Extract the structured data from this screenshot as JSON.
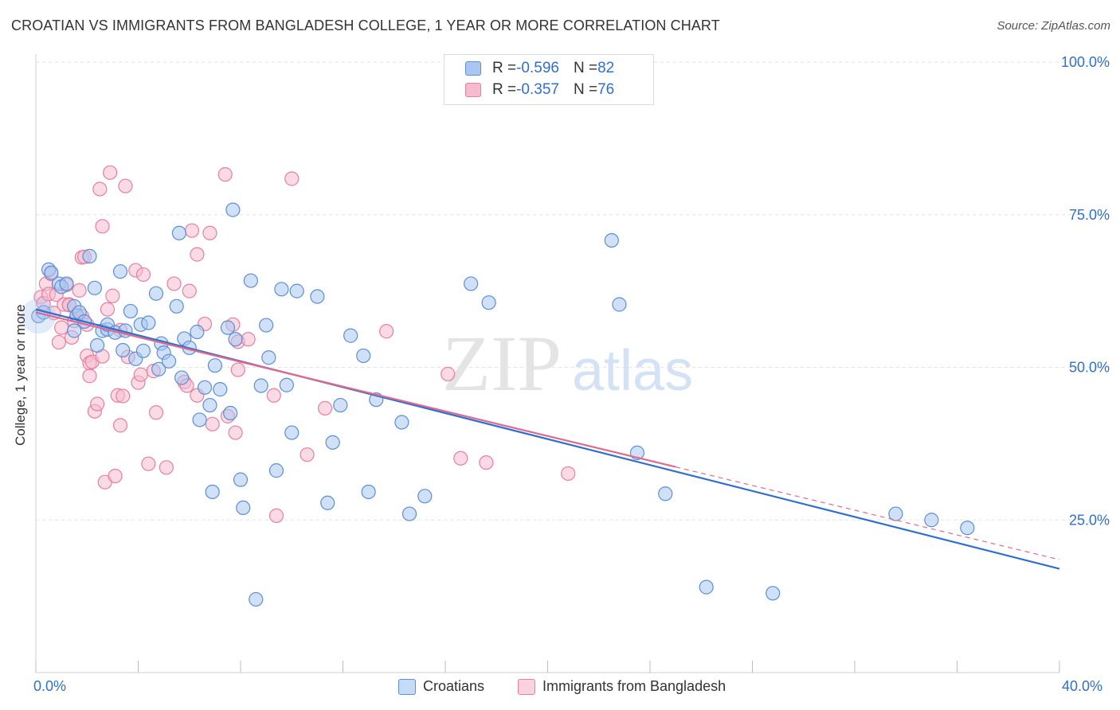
{
  "title": "CROATIAN VS IMMIGRANTS FROM BANGLADESH COLLEGE, 1 YEAR OR MORE CORRELATION CHART",
  "source": "Source: ZipAtlas.com",
  "watermark": {
    "zip": "ZIP",
    "atlas": "atlas"
  },
  "legend_top": [
    {
      "r_label": "R = ",
      "r_value": "-0.596",
      "n_label": "N = ",
      "n_value": "82"
    },
    {
      "r_label": "R = ",
      "r_value": "-0.357",
      "n_label": "N = ",
      "n_value": "76"
    }
  ],
  "colors": {
    "blue_fill": "#a9c7f0",
    "blue_stroke": "#5b8fd6",
    "blue_line": "#2f6fce",
    "pink_fill": "#f6bccd",
    "pink_stroke": "#e77fa0",
    "pink_line": "#e0688f",
    "axis_text": "#2f6fce",
    "grid": "#e3e3e3"
  },
  "chart_data": {
    "type": "scatter",
    "title": "CROATIAN VS IMMIGRANTS FROM BANGLADESH COLLEGE, 1 YEAR OR MORE CORRELATION CHART",
    "xlabel": "",
    "ylabel": "College, 1 year or more",
    "xlim": [
      0,
      40
    ],
    "ylim": [
      0,
      100
    ],
    "x_tick_labels": [
      "0.0%",
      "40.0%"
    ],
    "y_ticks": [
      25,
      50,
      75,
      100
    ],
    "y_tick_labels": [
      "25.0%",
      "50.0%",
      "75.0%",
      "100.0%"
    ],
    "grid": "horizontal dashed",
    "legend": "bottom-center",
    "series": [
      {
        "name": "Croatians",
        "r": -0.596,
        "n": 82,
        "trend": {
          "x0": 0,
          "y0": 59.5,
          "x1": 40,
          "y1": 17.0,
          "dashed_from": null
        },
        "points": [
          [
            0.1,
            58.4
          ],
          [
            0.5,
            66.0
          ],
          [
            0.6,
            65.5
          ],
          [
            0.9,
            63.7
          ],
          [
            1.0,
            63.2
          ],
          [
            1.2,
            63.7
          ],
          [
            1.5,
            60.0
          ],
          [
            1.5,
            56.0
          ],
          [
            1.6,
            58.5
          ],
          [
            1.7,
            59.0
          ],
          [
            2.1,
            68.2
          ],
          [
            2.3,
            63.0
          ],
          [
            2.4,
            53.6
          ],
          [
            2.6,
            56.0
          ],
          [
            2.8,
            56.2
          ],
          [
            2.8,
            57.0
          ],
          [
            3.1,
            55.7
          ],
          [
            3.3,
            65.7
          ],
          [
            3.4,
            52.8
          ],
          [
            3.5,
            56.0
          ],
          [
            3.7,
            59.2
          ],
          [
            3.9,
            51.4
          ],
          [
            4.1,
            57.0
          ],
          [
            4.2,
            52.7
          ],
          [
            4.4,
            57.3
          ],
          [
            4.7,
            62.1
          ],
          [
            4.8,
            49.7
          ],
          [
            4.9,
            53.9
          ],
          [
            5.0,
            52.4
          ],
          [
            5.2,
            51.0
          ],
          [
            5.5,
            60.0
          ],
          [
            5.6,
            72.0
          ],
          [
            5.7,
            48.3
          ],
          [
            5.8,
            54.7
          ],
          [
            6.0,
            53.2
          ],
          [
            6.3,
            55.8
          ],
          [
            6.4,
            41.4
          ],
          [
            6.6,
            46.7
          ],
          [
            6.8,
            43.8
          ],
          [
            7.0,
            50.3
          ],
          [
            7.2,
            46.4
          ],
          [
            7.5,
            56.5
          ],
          [
            7.6,
            42.5
          ],
          [
            7.8,
            54.6
          ],
          [
            7.7,
            75.8
          ],
          [
            8.0,
            31.6
          ],
          [
            8.1,
            27.0
          ],
          [
            8.4,
            64.2
          ],
          [
            8.8,
            47.0
          ],
          [
            9.0,
            56.9
          ],
          [
            9.1,
            51.6
          ],
          [
            9.4,
            33.1
          ],
          [
            9.6,
            62.8
          ],
          [
            9.8,
            47.1
          ],
          [
            10.0,
            39.3
          ],
          [
            10.2,
            62.5
          ],
          [
            11.0,
            61.6
          ],
          [
            11.4,
            27.8
          ],
          [
            11.6,
            37.7
          ],
          [
            11.9,
            43.8
          ],
          [
            12.3,
            55.2
          ],
          [
            12.8,
            51.9
          ],
          [
            13.0,
            29.6
          ],
          [
            13.3,
            44.7
          ],
          [
            14.3,
            41.0
          ],
          [
            14.6,
            26.0
          ],
          [
            15.2,
            28.9
          ],
          [
            17.0,
            63.7
          ],
          [
            17.7,
            60.6
          ],
          [
            22.5,
            70.8
          ],
          [
            22.8,
            60.3
          ],
          [
            23.5,
            36.0
          ],
          [
            24.6,
            29.3
          ],
          [
            26.2,
            14.0
          ],
          [
            28.8,
            13.0
          ],
          [
            33.6,
            26.0
          ],
          [
            35.0,
            25.0
          ],
          [
            36.4,
            23.7
          ],
          [
            8.6,
            12.0
          ],
          [
            6.9,
            29.6
          ],
          [
            1.9,
            57.5
          ],
          [
            0.3,
            59.0
          ]
        ]
      },
      {
        "name": "Immigrants from Bangladesh",
        "r": -0.357,
        "n": 76,
        "trend": {
          "x0": 0,
          "y0": 59.0,
          "x1": 40,
          "y1": 18.5,
          "dashed_from": 25
        },
        "points": [
          [
            0.2,
            61.5
          ],
          [
            0.3,
            60.5
          ],
          [
            0.4,
            63.7
          ],
          [
            0.5,
            62.0
          ],
          [
            0.6,
            65.3
          ],
          [
            0.7,
            58.9
          ],
          [
            0.8,
            61.9
          ],
          [
            0.9,
            54.1
          ],
          [
            1.0,
            56.5
          ],
          [
            1.1,
            60.3
          ],
          [
            1.2,
            63.5
          ],
          [
            1.3,
            60.3
          ],
          [
            1.4,
            54.9
          ],
          [
            1.5,
            57.6
          ],
          [
            1.6,
            58.5
          ],
          [
            1.7,
            62.6
          ],
          [
            1.8,
            58.4
          ],
          [
            1.8,
            68.0
          ],
          [
            1.9,
            68.1
          ],
          [
            2.0,
            57.0
          ],
          [
            2.0,
            51.9
          ],
          [
            2.1,
            50.7
          ],
          [
            2.1,
            48.6
          ],
          [
            2.2,
            50.9
          ],
          [
            2.3,
            42.8
          ],
          [
            2.4,
            44.0
          ],
          [
            2.5,
            79.2
          ],
          [
            2.6,
            51.8
          ],
          [
            2.6,
            73.1
          ],
          [
            2.7,
            31.2
          ],
          [
            2.8,
            59.5
          ],
          [
            2.9,
            81.9
          ],
          [
            3.0,
            61.7
          ],
          [
            3.1,
            32.2
          ],
          [
            3.2,
            45.4
          ],
          [
            3.3,
            40.5
          ],
          [
            3.4,
            45.3
          ],
          [
            3.5,
            79.7
          ],
          [
            3.6,
            51.7
          ],
          [
            3.9,
            65.9
          ],
          [
            4.0,
            47.5
          ],
          [
            4.1,
            48.8
          ],
          [
            4.2,
            65.2
          ],
          [
            4.4,
            34.2
          ],
          [
            4.6,
            49.4
          ],
          [
            4.7,
            42.6
          ],
          [
            5.1,
            33.6
          ],
          [
            5.4,
            63.7
          ],
          [
            5.8,
            47.6
          ],
          [
            5.9,
            47.0
          ],
          [
            6.0,
            62.5
          ],
          [
            6.1,
            72.4
          ],
          [
            6.3,
            45.4
          ],
          [
            6.3,
            68.5
          ],
          [
            6.6,
            57.1
          ],
          [
            6.8,
            72.0
          ],
          [
            6.9,
            40.7
          ],
          [
            7.4,
            81.6
          ],
          [
            7.5,
            42.0
          ],
          [
            7.7,
            57.0
          ],
          [
            7.8,
            39.3
          ],
          [
            7.9,
            54.2
          ],
          [
            7.9,
            49.6
          ],
          [
            8.3,
            54.6
          ],
          [
            9.3,
            45.4
          ],
          [
            9.4,
            25.7
          ],
          [
            10.0,
            80.9
          ],
          [
            10.6,
            35.7
          ],
          [
            11.3,
            43.3
          ],
          [
            13.7,
            55.9
          ],
          [
            16.1,
            48.9
          ],
          [
            16.6,
            35.1
          ],
          [
            17.6,
            34.4
          ],
          [
            20.8,
            32.6
          ],
          [
            1.3,
            60.2
          ],
          [
            3.3,
            56.1
          ]
        ]
      }
    ]
  },
  "bottom_legend": [
    "Croatians",
    "Immigrants from Bangladesh"
  ]
}
